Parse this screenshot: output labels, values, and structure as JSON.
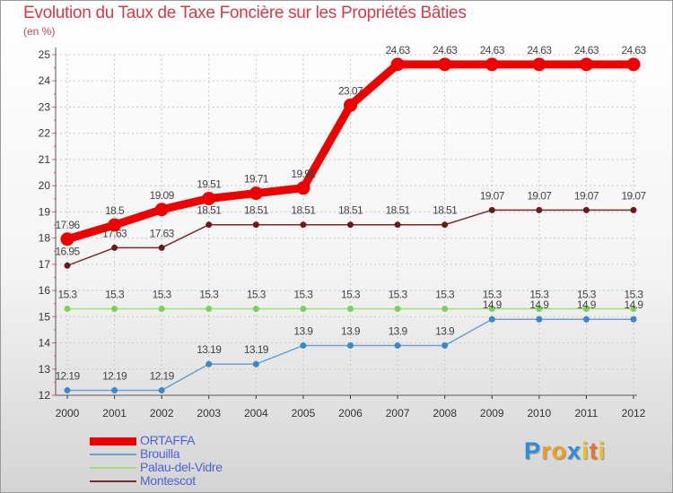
{
  "chart_data": {
    "type": "line",
    "title": "Evolution du Taux de Taxe Foncière sur les Propriétés Bâties",
    "ylabel": "(en %)",
    "xlabel": "",
    "ylim": [
      12,
      25
    ],
    "yticks": [
      "12",
      "13",
      "14",
      "15",
      "16",
      "17",
      "18",
      "19",
      "20",
      "21",
      "22",
      "23",
      "24",
      "25"
    ],
    "categories": [
      "2000",
      "2001",
      "2002",
      "2003",
      "2004",
      "2005",
      "2006",
      "2007",
      "2008",
      "2009",
      "2010",
      "2011",
      "2012"
    ],
    "legend_position": "bottom-left",
    "series": [
      {
        "name": "ORTAFFA",
        "color": "#ee0000",
        "emphasis": "thick",
        "values": [
          17.96,
          18.5,
          19.09,
          19.51,
          19.71,
          19.91,
          23.07,
          24.63,
          24.63,
          24.63,
          24.63,
          24.63,
          24.63
        ],
        "labels": [
          "17.96",
          "18.5",
          "19.09",
          "19.51",
          "19.71",
          "19.91",
          "23.07",
          "24.63",
          "24.63",
          "24.63",
          "24.63",
          "24.63",
          "24.63"
        ]
      },
      {
        "name": "Brouilla",
        "color": "#6da2cf",
        "emphasis": "thin",
        "values": [
          12.19,
          12.19,
          12.19,
          13.19,
          13.19,
          13.9,
          13.9,
          13.9,
          13.9,
          14.9,
          14.9,
          14.9,
          14.9
        ],
        "labels": [
          "12.19",
          "12.19",
          "12.19",
          "13.19",
          "13.19",
          "13.9",
          "13.9",
          "13.9",
          "13.9",
          "14.9",
          "14.9",
          "14.9",
          "14.9"
        ]
      },
      {
        "name": "Palau-del-Vidre",
        "color": "#9ee07a",
        "emphasis": "thin",
        "values": [
          15.3,
          15.3,
          15.3,
          15.3,
          15.3,
          15.3,
          15.3,
          15.3,
          15.3,
          15.3,
          15.3,
          15.3,
          15.3
        ],
        "labels": [
          "15.3",
          "15.3",
          "15.3",
          "15.3",
          "15.3",
          "15.3",
          "15.3",
          "15.3",
          "15.3",
          "15.3",
          "15.3",
          "15.3",
          "15.3"
        ]
      },
      {
        "name": "Montescot",
        "color": "#7a2a2a",
        "emphasis": "thin",
        "values": [
          16.95,
          17.63,
          17.63,
          18.51,
          18.51,
          18.51,
          18.51,
          18.51,
          18.51,
          19.07,
          19.07,
          19.07,
          19.07
        ],
        "labels": [
          "16.95",
          "17.63",
          "17.63",
          "18.51",
          "18.51",
          "18.51",
          "18.51",
          "18.51",
          "18.51",
          "19.07",
          "19.07",
          "19.07",
          "19.07"
        ]
      }
    ]
  },
  "brand": {
    "letters": [
      "P",
      "r",
      "o",
      "x",
      "i",
      "t",
      "i"
    ],
    "colors": [
      "#2e8fd8",
      "#f0a020",
      "#f0a020",
      "#2e8fd8",
      "#e8c020",
      "#f07030",
      "#e8c020"
    ]
  }
}
